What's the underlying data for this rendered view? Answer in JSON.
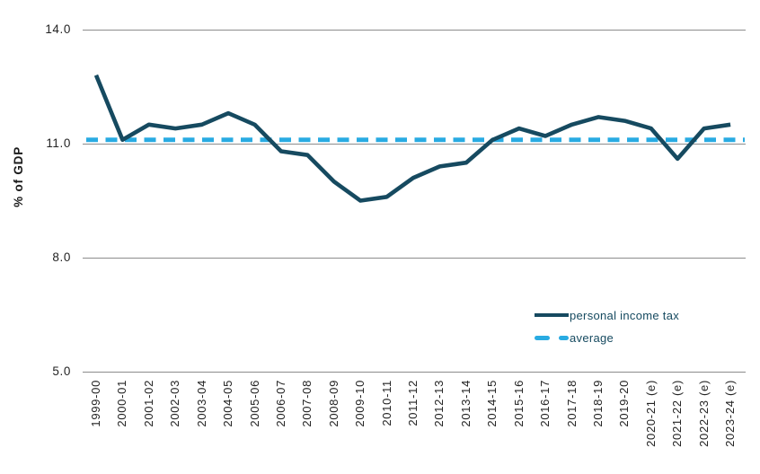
{
  "colors": {
    "series_line": "#164a60",
    "average_line": "#29abe2",
    "gridline": "#8c8c8c",
    "tick_text": "#232323",
    "legend_text": "#164a60"
  },
  "chart_data": {
    "type": "line",
    "title": "",
    "xlabel": "",
    "ylabel": "% of GDP",
    "ylim": [
      5.0,
      14.0
    ],
    "grid": "horizontal",
    "legend_position": "inside-bottom-right",
    "y_ticks": [
      {
        "value": 14.0,
        "label": "14.0"
      },
      {
        "value": 11.0,
        "label": "11.0"
      },
      {
        "value": 8.0,
        "label": "8.0"
      },
      {
        "value": 5.0,
        "label": "5.0"
      }
    ],
    "categories": [
      "1999-00",
      "2000-01",
      "2001-02",
      "2002-03",
      "2003-04",
      "2004-05",
      "2005-06",
      "2006-07",
      "2007-08",
      "2008-09",
      "2009-10",
      "2010-11",
      "2011-12",
      "2012-13",
      "2013-14",
      "2014-15",
      "2015-16",
      "2016-17",
      "2017-18",
      "2018-19",
      "2019-20",
      "2020-21 (e)",
      "2021-22 (e)",
      "2022-23 (e)",
      "2023-24 (e)"
    ],
    "series": [
      {
        "name": "personal income tax",
        "type": "line",
        "style": "solid",
        "color": "#164a60",
        "values": [
          12.8,
          11.1,
          11.5,
          11.4,
          11.5,
          11.8,
          11.5,
          10.8,
          10.7,
          10.0,
          9.5,
          9.6,
          10.1,
          10.4,
          10.5,
          11.1,
          11.4,
          11.2,
          11.5,
          11.7,
          11.6,
          11.4,
          10.6,
          11.4,
          11.5
        ]
      },
      {
        "name": "average",
        "type": "constant-line",
        "style": "dashed",
        "color": "#29abe2",
        "value": 11.1
      }
    ]
  }
}
